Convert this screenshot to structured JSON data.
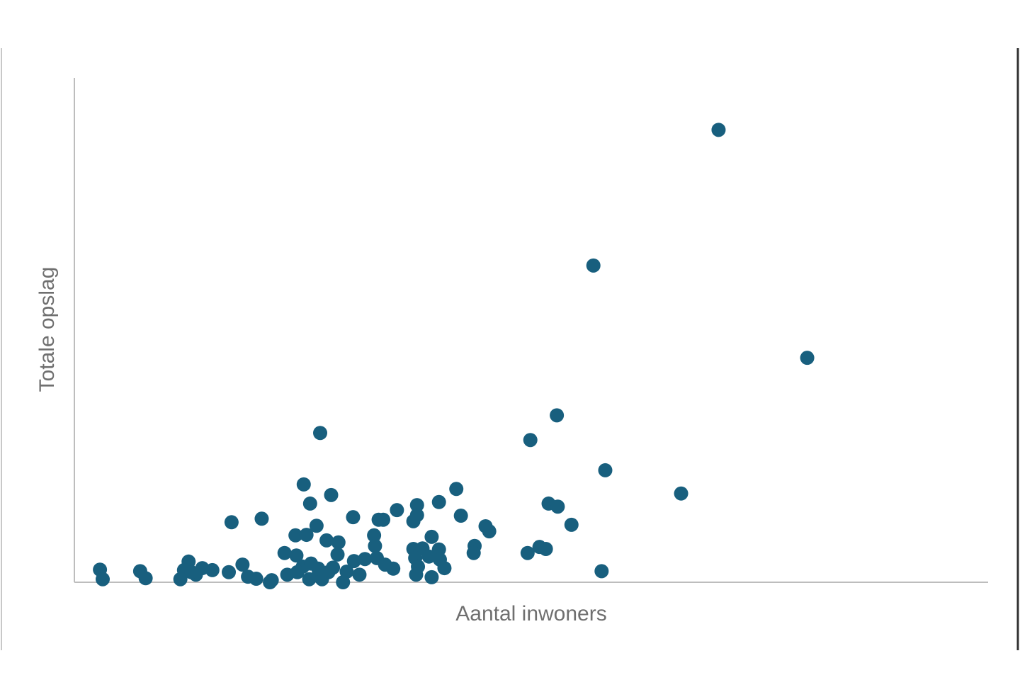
{
  "chart_data": {
    "type": "scatter",
    "x_label": "Aantal inwoners",
    "y_label": "Totale opslag",
    "color": "#185f7e",
    "xlim": [
      0,
      100
    ],
    "ylim": [
      0,
      100
    ],
    "x": [
      70.5,
      56.8,
      80.2,
      52.8,
      49.9,
      26.9,
      58.1,
      66.4,
      41.8,
      25.1,
      28.1,
      39.9,
      25.8,
      35.3,
      37.5,
      51.9,
      52.9,
      42.3,
      30.5,
      33.3,
      33.8,
      37.5,
      37.1,
      20.5,
      17.2,
      26.5,
      45.0,
      45.4,
      54.4,
      24.2,
      25.4,
      32.8,
      39.1,
      27.6,
      28.9,
      32.9,
      43.8,
      37.1,
      38.1,
      39.9,
      50.9,
      51.6,
      49.6,
      43.7,
      23.0,
      24.3,
      28.8,
      30.6,
      31.8,
      33.1,
      37.3,
      38.8,
      40.0,
      34.0,
      34.9,
      25.0,
      25.9,
      18.4,
      28.3,
      37.6,
      40.5,
      14.0,
      12.5,
      12.0,
      7.2,
      2.8,
      16.9,
      23.3,
      24.4,
      26.7,
      27.8,
      29.8,
      31.2,
      57.7,
      19.0,
      19.9,
      21.4,
      21.6,
      25.7,
      27.1,
      29.4,
      37.4,
      39.1,
      11.6,
      13.3,
      7.8,
      3.1,
      12.8,
      26.7,
      15.1
    ],
    "y": [
      89.7,
      62.8,
      44.5,
      33.1,
      28.2,
      29.6,
      22.2,
      17.6,
      18.5,
      19.4,
      17.3,
      15.9,
      15.6,
      14.3,
      15.3,
      15.6,
      15.0,
      13.2,
      12.9,
      12.4,
      12.4,
      13.3,
      12.1,
      12.6,
      11.9,
      11.2,
      11.1,
      10.1,
      11.4,
      9.3,
      9.4,
      9.3,
      9.0,
      8.3,
      7.9,
      7.2,
      7.2,
      6.6,
      6.7,
      6.5,
      7.0,
      6.6,
      5.8,
      5.8,
      5.8,
      5.3,
      5.5,
      4.2,
      4.6,
      4.8,
      4.8,
      5.1,
      4.5,
      3.5,
      2.7,
      3.1,
      3.7,
      3.5,
      2.9,
      3.1,
      2.8,
      2.8,
      4.1,
      2.4,
      2.2,
      2.5,
      2.0,
      1.5,
      2.0,
      1.4,
      2.0,
      2.1,
      1.5,
      2.2,
      1.1,
      0.7,
      0.0,
      0.4,
      0.6,
      0.6,
      0.0,
      1.5,
      1.0,
      0.6,
      1.5,
      0.8,
      0.6,
      2.0,
      2.7,
      2.4
    ]
  }
}
